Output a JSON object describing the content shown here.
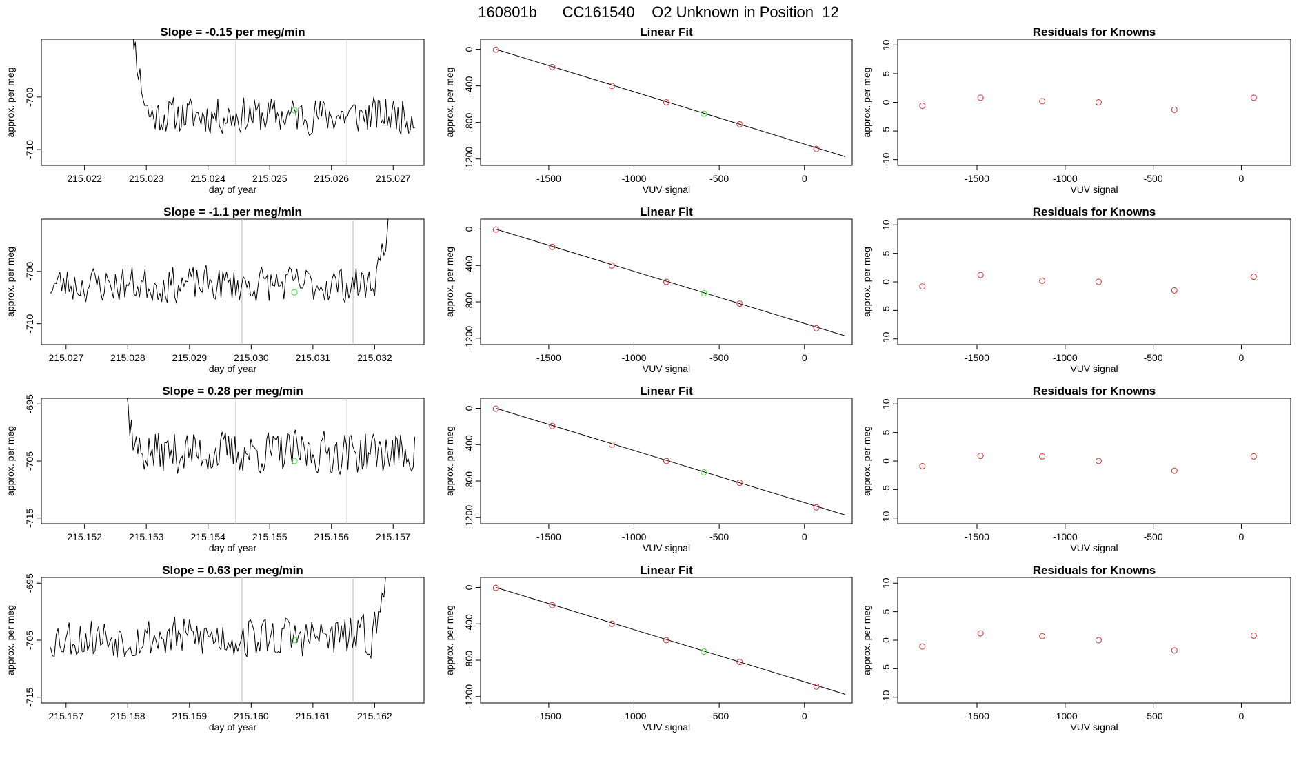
{
  "figure": {
    "title": "160801b      CC161540    O2 Unknown in Position  12",
    "colors": {
      "line": "#000000",
      "known": "#cc3333",
      "unknown": "#33dd33",
      "vline": "#bbbbbb"
    }
  },
  "chart_data": [
    {
      "type": "line",
      "row": 0,
      "col": 0,
      "title": "Slope =  -0.15  per meg/min",
      "xlabel": "day of year",
      "ylabel": "approx. per meg",
      "xlim": [
        215.0213,
        215.0275
      ],
      "ylim": [
        -713,
        -689
      ],
      "xticks": [
        215.022,
        215.023,
        215.024,
        215.025,
        215.026,
        215.027
      ],
      "xticklabels": [
        "215.022",
        "215.023",
        "215.024",
        "215.025",
        "215.026",
        "215.027"
      ],
      "yticks": [
        -700,
        -710
      ],
      "yticklabels": [
        "-700",
        "-710"
      ],
      "t_start": 215.02265,
      "t_end": 215.02735,
      "base": -703.5,
      "amp": 2.8,
      "seed": 11,
      "start": "decay",
      "end": "none",
      "vlines": [
        215.02445,
        215.02625
      ],
      "marker": [
        215.0254,
        -702.5
      ]
    },
    {
      "type": "scatter",
      "row": 0,
      "col": 1,
      "title": "Linear Fit",
      "xlabel": "VUV signal",
      "ylabel": "approx. per meg",
      "xlim": [
        -1900,
        280
      ],
      "ylim": [
        -1270,
        110
      ],
      "xticks": [
        -1500,
        -1000,
        -500,
        0
      ],
      "xticklabels": [
        "-1500",
        "-1000",
        "-500",
        "0"
      ],
      "yticks": [
        0,
        -400,
        -800,
        -1200
      ],
      "yticklabels": [
        "0",
        "-400",
        "-800",
        "-1200"
      ],
      "line": [
        [
          -1810,
          0
        ],
        [
          240,
          -1175
        ]
      ],
      "knowns": [
        [
          -1810,
          -5
        ],
        [
          -1480,
          -195
        ],
        [
          -1130,
          -400
        ],
        [
          -810,
          -580
        ],
        [
          -380,
          -820
        ],
        [
          70,
          -1090
        ]
      ],
      "unknown": [
        [
          -590,
          -705
        ]
      ]
    },
    {
      "type": "scatter",
      "row": 0,
      "col": 2,
      "title": "Residuals for Knowns",
      "xlabel": "VUV signal",
      "ylabel": "approx. per meg",
      "xlim": [
        -1950,
        280
      ],
      "ylim": [
        -11,
        11
      ],
      "xticks": [
        -1500,
        -1000,
        -500,
        0
      ],
      "xticklabels": [
        "-1500",
        "-1000",
        "-500",
        "0"
      ],
      "yticks": [
        10,
        5,
        0,
        -5,
        -10
      ],
      "yticklabels": [
        "10",
        "5",
        "0",
        "-5",
        "-10"
      ],
      "points": [
        [
          -1810,
          -0.6
        ],
        [
          -1480,
          0.8
        ],
        [
          -1130,
          0.2
        ],
        [
          -810,
          0.0
        ],
        [
          -380,
          -1.3
        ],
        [
          70,
          0.8
        ]
      ]
    },
    {
      "type": "line",
      "row": 1,
      "col": 0,
      "title": "Slope =  -1.1  per meg/min",
      "xlabel": "day of year",
      "ylabel": "approx. per meg",
      "xlim": [
        215.0266,
        215.0328
      ],
      "ylim": [
        -714,
        -690
      ],
      "xticks": [
        215.027,
        215.028,
        215.029,
        215.03,
        215.031,
        215.032
      ],
      "xticklabels": [
        "215.027",
        "215.028",
        "215.029",
        "215.030",
        "215.031",
        "215.032"
      ],
      "yticks": [
        -700,
        -710
      ],
      "yticklabels": [
        "-700",
        "-710"
      ],
      "t_start": 215.02675,
      "t_end": 215.03245,
      "base": -702.5,
      "amp": 2.8,
      "seed": 23,
      "start": "normal",
      "end": "rise",
      "vlines": [
        215.02985,
        215.03165
      ],
      "marker": [
        215.0307,
        -704
      ]
    },
    {
      "type": "scatter",
      "row": 1,
      "col": 1,
      "title": "Linear Fit",
      "xlabel": "VUV signal",
      "ylabel": "approx. per meg",
      "xlim": [
        -1900,
        280
      ],
      "ylim": [
        -1270,
        110
      ],
      "xticks": [
        -1500,
        -1000,
        -500,
        0
      ],
      "xticklabels": [
        "-1500",
        "-1000",
        "-500",
        "0"
      ],
      "yticks": [
        0,
        -400,
        -800,
        -1200
      ],
      "yticklabels": [
        "0",
        "-400",
        "-800",
        "-1200"
      ],
      "line": [
        [
          -1810,
          0
        ],
        [
          240,
          -1175
        ]
      ],
      "knowns": [
        [
          -1810,
          -5
        ],
        [
          -1480,
          -195
        ],
        [
          -1130,
          -400
        ],
        [
          -810,
          -580
        ],
        [
          -380,
          -820
        ],
        [
          70,
          -1090
        ]
      ],
      "unknown": [
        [
          -590,
          -705
        ]
      ]
    },
    {
      "type": "scatter",
      "row": 1,
      "col": 2,
      "title": "Residuals for Knowns",
      "xlabel": "VUV signal",
      "ylabel": "approx. per meg",
      "xlim": [
        -1950,
        280
      ],
      "ylim": [
        -11,
        11
      ],
      "xticks": [
        -1500,
        -1000,
        -500,
        0
      ],
      "xticklabels": [
        "-1500",
        "-1000",
        "-500",
        "0"
      ],
      "yticks": [
        10,
        5,
        0,
        -5,
        -10
      ],
      "yticklabels": [
        "10",
        "5",
        "0",
        "-5",
        "-10"
      ],
      "points": [
        [
          -1810,
          -0.8
        ],
        [
          -1480,
          1.2
        ],
        [
          -1130,
          0.2
        ],
        [
          -810,
          0.0
        ],
        [
          -380,
          -1.5
        ],
        [
          70,
          0.9
        ]
      ]
    },
    {
      "type": "line",
      "row": 2,
      "col": 0,
      "title": "Slope =  0.28  per meg/min",
      "xlabel": "day of year",
      "ylabel": "approx. per meg",
      "xlim": [
        215.1513,
        215.1575
      ],
      "ylim": [
        -716,
        -694
      ],
      "xticks": [
        215.152,
        215.153,
        215.154,
        215.155,
        215.156,
        215.157
      ],
      "xticklabels": [
        "215.152",
        "215.153",
        "215.154",
        "215.155",
        "215.156",
        "215.157"
      ],
      "yticks": [
        -695,
        -705,
        -715
      ],
      "yticklabels": [
        "-695",
        "-705",
        "-715"
      ],
      "t_start": 215.15245,
      "t_end": 215.15735,
      "base": -703.5,
      "amp": 3.0,
      "seed": 37,
      "start": "decay",
      "end": "none",
      "vlines": [
        215.15445,
        215.15625
      ],
      "marker": [
        215.1554,
        -705
      ]
    },
    {
      "type": "scatter",
      "row": 2,
      "col": 1,
      "title": "Linear Fit",
      "xlabel": "VUV signal",
      "ylabel": "approx. per meg",
      "xlim": [
        -1900,
        280
      ],
      "ylim": [
        -1270,
        110
      ],
      "xticks": [
        -1500,
        -1000,
        -500,
        0
      ],
      "xticklabels": [
        "-1500",
        "-1000",
        "-500",
        "0"
      ],
      "yticks": [
        0,
        -400,
        -800,
        -1200
      ],
      "yticklabels": [
        "0",
        "-400",
        "-800",
        "-1200"
      ],
      "line": [
        [
          -1810,
          0
        ],
        [
          240,
          -1175
        ]
      ],
      "knowns": [
        [
          -1810,
          -5
        ],
        [
          -1480,
          -195
        ],
        [
          -1130,
          -400
        ],
        [
          -810,
          -580
        ],
        [
          -380,
          -820
        ],
        [
          70,
          -1090
        ]
      ],
      "unknown": [
        [
          -590,
          -705
        ]
      ]
    },
    {
      "type": "scatter",
      "row": 2,
      "col": 2,
      "title": "Residuals for Knowns",
      "xlabel": "VUV signal",
      "ylabel": "approx. per meg",
      "xlim": [
        -1950,
        280
      ],
      "ylim": [
        -11,
        11
      ],
      "xticks": [
        -1500,
        -1000,
        -500,
        0
      ],
      "xticklabels": [
        "-1500",
        "-1000",
        "-500",
        "0"
      ],
      "yticks": [
        10,
        5,
        0,
        -5,
        -10
      ],
      "yticklabels": [
        "10",
        "5",
        "0",
        "-5",
        "-10"
      ],
      "points": [
        [
          -1810,
          -0.9
        ],
        [
          -1480,
          0.9
        ],
        [
          -1130,
          0.8
        ],
        [
          -810,
          0.0
        ],
        [
          -380,
          -1.7
        ],
        [
          70,
          0.8
        ]
      ]
    },
    {
      "type": "line",
      "row": 3,
      "col": 0,
      "title": "Slope =  0.63  per meg/min",
      "xlabel": "day of year",
      "ylabel": "approx. per meg",
      "xlim": [
        215.1566,
        215.1628
      ],
      "ylim": [
        -716,
        -694
      ],
      "xticks": [
        215.157,
        215.158,
        215.159,
        215.16,
        215.161,
        215.162
      ],
      "xticklabels": [
        "215.157",
        "215.158",
        "215.159",
        "215.160",
        "215.161",
        "215.162"
      ],
      "yticks": [
        -695,
        -705,
        -715
      ],
      "yticklabels": [
        "-695",
        "-705",
        "-715"
      ],
      "t_start": 215.15675,
      "t_end": 215.16245,
      "base": -704.5,
      "amp": 3.0,
      "seed": 53,
      "start": "normal",
      "end": "rise",
      "vlines": [
        215.15985,
        215.16165
      ],
      "marker": [
        215.1607,
        -705
      ]
    },
    {
      "type": "scatter",
      "row": 3,
      "col": 1,
      "title": "Linear Fit",
      "xlabel": "VUV signal",
      "ylabel": "approx. per meg",
      "xlim": [
        -1900,
        280
      ],
      "ylim": [
        -1270,
        110
      ],
      "xticks": [
        -1500,
        -1000,
        -500,
        0
      ],
      "xticklabels": [
        "-1500",
        "-1000",
        "-500",
        "0"
      ],
      "yticks": [
        0,
        -400,
        -800,
        -1200
      ],
      "yticklabels": [
        "0",
        "-400",
        "-800",
        "-1200"
      ],
      "line": [
        [
          -1810,
          0
        ],
        [
          240,
          -1175
        ]
      ],
      "knowns": [
        [
          -1810,
          -5
        ],
        [
          -1480,
          -195
        ],
        [
          -1130,
          -400
        ],
        [
          -810,
          -580
        ],
        [
          -380,
          -820
        ],
        [
          70,
          -1090
        ]
      ],
      "unknown": [
        [
          -590,
          -705
        ]
      ]
    },
    {
      "type": "scatter",
      "row": 3,
      "col": 2,
      "title": "Residuals for Knowns",
      "xlabel": "VUV signal",
      "ylabel": "approx. per meg",
      "xlim": [
        -1950,
        280
      ],
      "ylim": [
        -11,
        11
      ],
      "xticks": [
        -1500,
        -1000,
        -500,
        0
      ],
      "xticklabels": [
        "-1500",
        "-1000",
        "-500",
        "0"
      ],
      "yticks": [
        10,
        5,
        0,
        -5,
        -10
      ],
      "yticklabels": [
        "10",
        "5",
        "0",
        "-5",
        "-10"
      ],
      "points": [
        [
          -1810,
          -1.1
        ],
        [
          -1480,
          1.2
        ],
        [
          -1130,
          0.7
        ],
        [
          -810,
          0.0
        ],
        [
          -380,
          -1.8
        ],
        [
          70,
          0.8
        ]
      ]
    }
  ]
}
